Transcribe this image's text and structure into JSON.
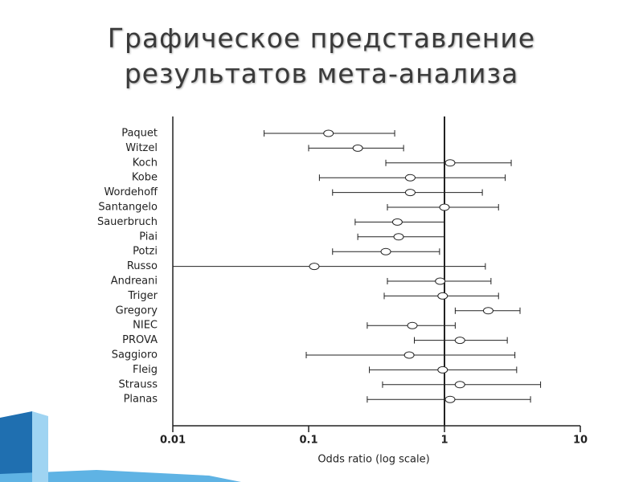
{
  "chart_data": {
    "type": "forest",
    "title": "Графическое представление результатов мета-анализа",
    "x_label": "Odds ratio (log scale)",
    "log_scale": true,
    "xlim": [
      0.01,
      10
    ],
    "xticks": [
      0.01,
      0.1,
      1,
      10
    ],
    "reference_line": 1,
    "color": "#222222",
    "categories": [
      "Paquet",
      "Witzel",
      "Koch",
      "Kobe",
      "Wordehoff",
      "Santangelo",
      "Sauerbruch",
      "Piai",
      "Potzi",
      "Russo",
      "Andreani",
      "Triger",
      "Gregory",
      "NIEC",
      "PROVA",
      "Saggioro",
      "Fleig",
      "Strauss",
      "Planas"
    ],
    "values": [
      0.14,
      0.23,
      1.1,
      0.56,
      0.56,
      1.0,
      0.45,
      0.46,
      0.37,
      0.11,
      0.93,
      0.97,
      2.1,
      0.58,
      1.3,
      0.55,
      0.97,
      1.3,
      1.1
    ],
    "lower": [
      0.047,
      0.1,
      0.37,
      0.12,
      0.15,
      0.38,
      0.22,
      0.23,
      0.15,
      0.01,
      0.38,
      0.36,
      1.2,
      0.27,
      0.6,
      0.096,
      0.28,
      0.35,
      0.27
    ],
    "upper": [
      0.43,
      0.5,
      3.1,
      2.8,
      1.9,
      2.5,
      1.0,
      1.0,
      0.92,
      2.0,
      2.2,
      2.5,
      3.6,
      1.2,
      2.9,
      3.3,
      3.4,
      5.1,
      4.3
    ]
  }
}
